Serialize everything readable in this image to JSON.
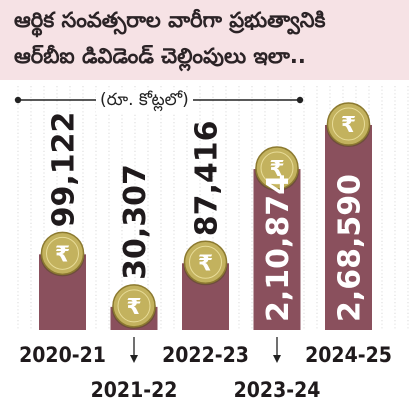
{
  "title": {
    "line1": "ఆర్థిక సంవత్సరాల వారీగా ప్రభుత్వానికి",
    "line2": "ఆర్‌బీఐ డివిడెండ్ చెల్లింపులు ఇలా.."
  },
  "unit_label": "(రూ. కోట్లలో)",
  "colors": {
    "bar": "#8a505d",
    "title_bg": "#f6e2e5",
    "coin": "#c3b25e",
    "grid": "#d2d2d2"
  },
  "chart_data": {
    "type": "bar",
    "title": "ఆర్థిక సంవత్సరాల వారీగా ప్రభుత్వానికి ఆర్‌బీఐ డివిడెండ్ చెల్లింపులు ఇలా..",
    "xlabel": "",
    "ylabel": "(రూ. కోట్లలో)",
    "categories": [
      "2020-21",
      "2021-22",
      "2022-23",
      "2023-24",
      "2024-25"
    ],
    "values": [
      99122,
      30307,
      87416,
      210874,
      268590
    ],
    "value_labels": [
      "99,122",
      "30,307",
      "87,416",
      "2,10,874",
      "2,68,590"
    ],
    "ylim": [
      0,
      268590
    ],
    "grid": true,
    "coin_icon": "rupee-coin-icon"
  }
}
